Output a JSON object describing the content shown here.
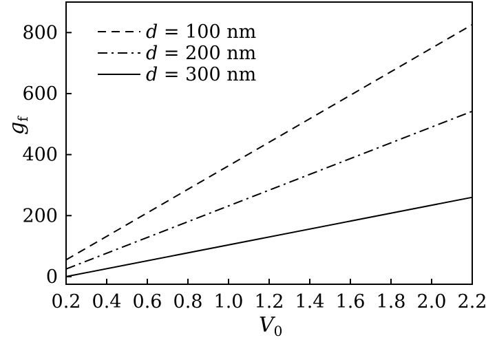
{
  "chart_data": {
    "type": "line",
    "xlabel": "V",
    "xlabel_sub": "0",
    "ylabel": "g",
    "ylabel_sub": "f",
    "xlim": [
      0.2,
      2.2
    ],
    "ylim": [
      -25,
      900
    ],
    "xticks": [
      0.2,
      0.4,
      0.6,
      0.8,
      1.0,
      1.2,
      1.4,
      1.6,
      1.8,
      2.0,
      2.2
    ],
    "xtick_labels": [
      "0.2",
      "0.4",
      "0.6",
      "0.8",
      "1.0",
      "1.2",
      "1.4",
      "1.6",
      "1.8",
      "2.0",
      "2.2"
    ],
    "yticks": [
      0,
      200,
      400,
      600,
      800
    ],
    "ytick_labels": [
      "0",
      "200",
      "400",
      "600",
      "800"
    ],
    "grid": false,
    "legend_position": "top-left",
    "series": [
      {
        "name_var": "d",
        "name_rest": " = 100 nm",
        "style": "dashed",
        "x": [
          0.2,
          2.2
        ],
        "y": [
          55,
          826
        ]
      },
      {
        "name_var": "d",
        "name_rest": " = 200 nm",
        "style": "dashdot",
        "x": [
          0.2,
          2.2
        ],
        "y": [
          25,
          542
        ]
      },
      {
        "name_var": "d",
        "name_rest": " = 300 nm",
        "style": "solid",
        "x": [
          0.2,
          2.2
        ],
        "y": [
          0,
          260
        ]
      }
    ]
  }
}
